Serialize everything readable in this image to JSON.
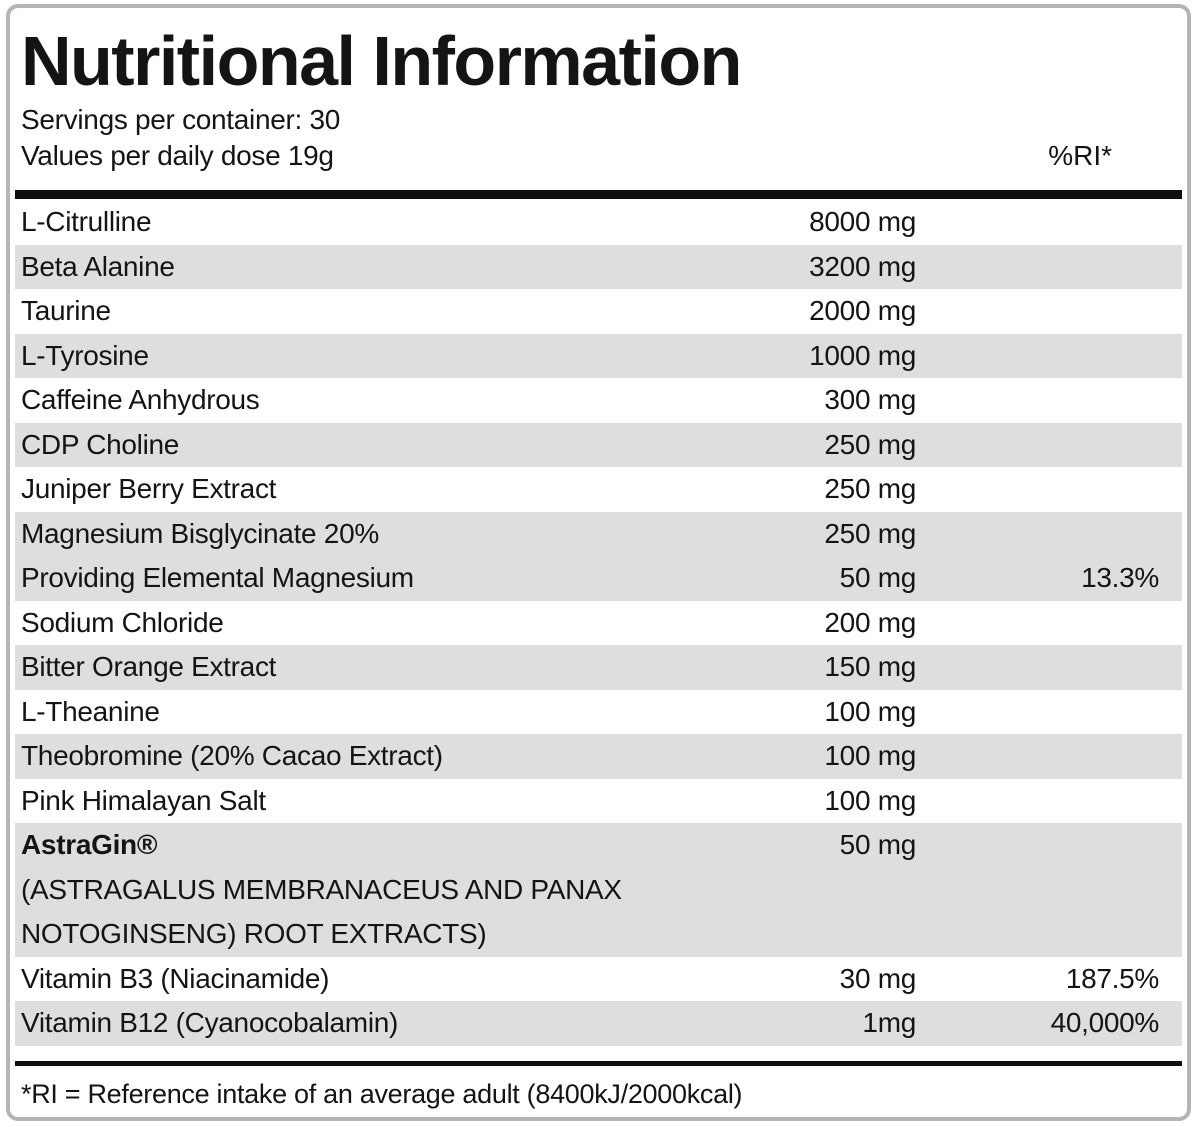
{
  "header": {
    "title": "Nutritional Information",
    "servings_line": "Servings per container: 30",
    "values_line": "Values per daily dose 19g",
    "ri_header": "%RI*"
  },
  "table": {
    "rows": [
      {
        "label": "L-Citrulline",
        "amount": "8000 mg",
        "ri": "",
        "shade": false
      },
      {
        "label": "Beta Alanine",
        "amount": "3200 mg",
        "ri": "",
        "shade": true
      },
      {
        "label": "Taurine",
        "amount": "2000 mg",
        "ri": "",
        "shade": false
      },
      {
        "label": "L-Tyrosine",
        "amount": "1000 mg",
        "ri": "",
        "shade": true
      },
      {
        "label": "Caffeine Anhydrous",
        "amount": "300 mg",
        "ri": "",
        "shade": false
      },
      {
        "label": "CDP Choline",
        "amount": "250 mg",
        "ri": "",
        "shade": true
      },
      {
        "label": "Juniper Berry Extract",
        "amount": "250 mg",
        "ri": "",
        "shade": false
      },
      {
        "label": "Magnesium Bisglycinate 20%",
        "amount": "250 mg",
        "ri": "",
        "shade": true
      },
      {
        "label": "Providing Elemental Magnesium",
        "amount": "50 mg",
        "ri": "13.3%",
        "shade": true
      },
      {
        "label": "Sodium Chloride",
        "amount": "200 mg",
        "ri": "",
        "shade": false
      },
      {
        "label": "Bitter Orange Extract",
        "amount": "150 mg",
        "ri": "",
        "shade": true
      },
      {
        "label": "L-Theanine",
        "amount": "100 mg",
        "ri": "",
        "shade": false
      },
      {
        "label": "Theobromine (20% Cacao Extract)",
        "amount": "100 mg",
        "ri": "",
        "shade": true
      },
      {
        "label": "Pink Himalayan Salt",
        "amount": "100 mg",
        "ri": "",
        "shade": false
      },
      {
        "label": "AstraGin®",
        "amount": "50 mg",
        "ri": "",
        "shade": true,
        "bold": true,
        "sublines": [
          "(ASTRAGALUS MEMBRANACEUS AND PANAX",
          "NOTOGINSENG) ROOT EXTRACTS)"
        ]
      },
      {
        "label": "Vitamin B3 (Niacinamide)",
        "amount": "30 mg",
        "ri": "187.5%",
        "shade": false
      },
      {
        "label": "Vitamin B12 (Cyanocobalamin)",
        "amount": "1mg",
        "ri": "40,000%",
        "shade": true
      }
    ]
  },
  "footer": {
    "note": "*RI = Reference intake of an average adult (8400kJ/2000kcal)"
  },
  "colors": {
    "shade": "#dedede",
    "text": "#141414",
    "rule": "#101010",
    "border": "#b5b5b5"
  }
}
